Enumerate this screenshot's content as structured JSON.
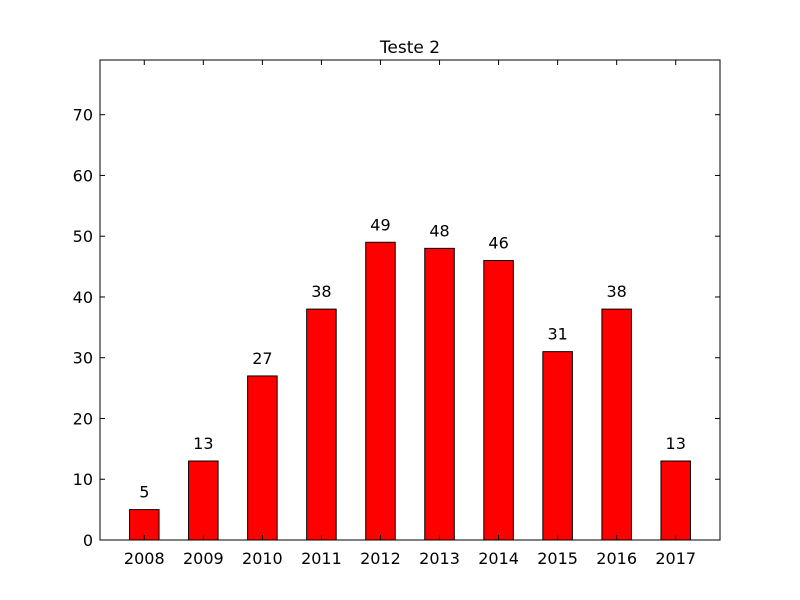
{
  "chart_data": {
    "type": "bar",
    "title": "Teste 2",
    "xlabel": "",
    "ylabel": "",
    "categories": [
      "2008",
      "2009",
      "2010",
      "2011",
      "2012",
      "2013",
      "2014",
      "2015",
      "2016",
      "2017"
    ],
    "values": [
      5,
      13,
      27,
      38,
      49,
      48,
      46,
      31,
      38,
      13
    ],
    "data_labels": [
      "5",
      "13",
      "27",
      "38",
      "49",
      "48",
      "46",
      "31",
      "38",
      "13"
    ],
    "ylim": [
      0,
      79
    ],
    "yticks": [
      0,
      10,
      20,
      30,
      40,
      50,
      60,
      70
    ],
    "ytick_labels": [
      "0",
      "10",
      "20",
      "30",
      "40",
      "50",
      "60",
      "70"
    ],
    "grid": false,
    "legend": "none",
    "colors": {
      "bar_fill": "#ff0000",
      "bar_edge": "#000000",
      "axes": "#000000"
    }
  }
}
